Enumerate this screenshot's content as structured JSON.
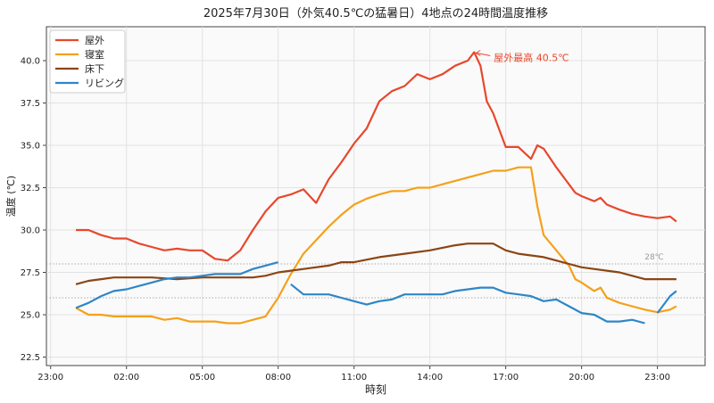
{
  "chart_data": {
    "type": "line",
    "title": "2025年7月30日（外気40.5℃の猛暑日）4地点の24時間温度推移",
    "xlabel": "時刻",
    "ylabel": "温度 (℃)",
    "xlim": [
      "2025-07-29 22:50",
      "2025-07-31 00:53"
    ],
    "ylim": [
      22,
      42
    ],
    "xticks": [
      {
        "t": "2025-07-29 23:00",
        "label": "23:00"
      },
      {
        "t": "2025-07-30 02:00",
        "label": "02:00"
      },
      {
        "t": "2025-07-30 05:00",
        "label": "05:00"
      },
      {
        "t": "2025-07-30 08:00",
        "label": "08:00"
      },
      {
        "t": "2025-07-30 11:00",
        "label": "11:00"
      },
      {
        "t": "2025-07-30 14:00",
        "label": "14:00"
      },
      {
        "t": "2025-07-30 17:00",
        "label": "17:00"
      },
      {
        "t": "2025-07-30 20:00",
        "label": "20:00"
      },
      {
        "t": "2025-07-30 23:00",
        "label": "23:00"
      }
    ],
    "yticks": [
      "22.5",
      "25.0",
      "27.5",
      "30.0",
      "32.5",
      "35.0",
      "37.5",
      "40.0"
    ],
    "grid": true,
    "legend_position": "top-left",
    "reference_lines": [
      {
        "y": 28,
        "label": "28℃",
        "style": "dotted"
      },
      {
        "y": 26,
        "label": "",
        "style": "dotted"
      }
    ],
    "annotation": {
      "text": "屋外最高 40.5℃",
      "t": "15:45",
      "y": 40.5,
      "color": "#e8472d"
    },
    "series": [
      {
        "name": "屋外",
        "color": "#e8472d",
        "segments": [
          [
            [
              "00:00",
              30.0
            ],
            [
              "00:30",
              30.0
            ],
            [
              "01:00",
              29.7
            ],
            [
              "01:30",
              29.5
            ],
            [
              "02:00",
              29.5
            ],
            [
              "02:30",
              29.2
            ],
            [
              "03:00",
              29.0
            ],
            [
              "03:30",
              28.8
            ],
            [
              "04:00",
              28.9
            ],
            [
              "04:30",
              28.8
            ],
            [
              "05:00",
              28.8
            ],
            [
              "05:30",
              28.3
            ],
            [
              "06:00",
              28.2
            ],
            [
              "06:30",
              28.8
            ],
            [
              "07:00",
              30.0
            ],
            [
              "07:30",
              31.1
            ],
            [
              "08:00",
              31.9
            ],
            [
              "08:30",
              32.1
            ],
            [
              "09:00",
              32.4
            ],
            [
              "09:30",
              31.6
            ],
            [
              "10:00",
              33.0
            ],
            [
              "10:30",
              34.0
            ],
            [
              "11:00",
              35.1
            ],
            [
              "11:30",
              36.0
            ],
            [
              "12:00",
              37.6
            ],
            [
              "12:30",
              38.2
            ],
            [
              "13:00",
              38.5
            ],
            [
              "13:30",
              39.2
            ],
            [
              "14:00",
              38.9
            ],
            [
              "14:30",
              39.2
            ],
            [
              "15:00",
              39.7
            ],
            [
              "15:30",
              40.0
            ],
            [
              "15:45",
              40.5
            ],
            [
              "16:00",
              39.7
            ],
            [
              "16:15",
              37.6
            ],
            [
              "16:30",
              36.9
            ],
            [
              "17:00",
              34.9
            ],
            [
              "17:30",
              34.9
            ],
            [
              "18:00",
              34.2
            ],
            [
              "18:15",
              35.0
            ],
            [
              "18:30",
              34.8
            ],
            [
              "19:00",
              33.7
            ],
            [
              "19:45",
              32.2
            ],
            [
              "20:00",
              32.0
            ],
            [
              "20:30",
              31.7
            ],
            [
              "20:45",
              31.9
            ],
            [
              "21:00",
              31.5
            ],
            [
              "21:30",
              31.2
            ],
            [
              "22:00",
              30.95
            ],
            [
              "22:30",
              30.8
            ],
            [
              "23:00",
              30.7
            ],
            [
              "23:30",
              30.8
            ],
            [
              "23:45",
              30.5
            ]
          ]
        ]
      },
      {
        "name": "寝室",
        "color": "#f5a01a",
        "segments": [
          [
            [
              "00:00",
              25.4
            ],
            [
              "00:30",
              25.0
            ],
            [
              "01:00",
              25.0
            ],
            [
              "01:30",
              24.9
            ],
            [
              "02:00",
              24.9
            ],
            [
              "02:30",
              24.9
            ],
            [
              "03:00",
              24.9
            ],
            [
              "03:30",
              24.7
            ],
            [
              "04:00",
              24.8
            ],
            [
              "04:30",
              24.6
            ],
            [
              "05:00",
              24.6
            ],
            [
              "05:30",
              24.6
            ],
            [
              "06:00",
              24.5
            ],
            [
              "06:30",
              24.5
            ],
            [
              "07:00",
              24.7
            ],
            [
              "07:30",
              24.9
            ],
            [
              "08:00",
              26.0
            ],
            [
              "08:30",
              27.4
            ],
            [
              "09:00",
              28.6
            ],
            [
              "09:30",
              29.4
            ],
            [
              "10:00",
              30.2
            ],
            [
              "10:30",
              30.9
            ],
            [
              "11:00",
              31.5
            ],
            [
              "11:30",
              31.85
            ],
            [
              "12:00",
              32.1
            ],
            [
              "12:30",
              32.3
            ],
            [
              "13:00",
              32.3
            ],
            [
              "13:30",
              32.5
            ],
            [
              "14:00",
              32.5
            ],
            [
              "14:30",
              32.7
            ],
            [
              "15:00",
              32.9
            ],
            [
              "15:30",
              33.1
            ],
            [
              "16:00",
              33.3
            ],
            [
              "16:30",
              33.5
            ],
            [
              "17:00",
              33.5
            ],
            [
              "17:30",
              33.7
            ],
            [
              "18:00",
              33.7
            ],
            [
              "18:15",
              31.4
            ],
            [
              "18:30",
              29.7
            ],
            [
              "19:00",
              28.8
            ],
            [
              "19:30",
              27.9
            ],
            [
              "19:45",
              27.1
            ],
            [
              "20:00",
              26.9
            ],
            [
              "20:30",
              26.4
            ],
            [
              "20:45",
              26.6
            ],
            [
              "21:00",
              26.0
            ],
            [
              "21:30",
              25.7
            ],
            [
              "22:00",
              25.5
            ],
            [
              "22:30",
              25.3
            ],
            [
              "23:00",
              25.15
            ],
            [
              "23:30",
              25.3
            ],
            [
              "23:45",
              25.5
            ]
          ]
        ]
      },
      {
        "name": "床下",
        "color": "#8b4513",
        "segments": [
          [
            [
              "00:00",
              26.8
            ],
            [
              "00:30",
              27.0
            ],
            [
              "01:00",
              27.1
            ],
            [
              "01:30",
              27.2
            ],
            [
              "02:00",
              27.2
            ],
            [
              "03:00",
              27.2
            ],
            [
              "04:00",
              27.1
            ],
            [
              "05:00",
              27.2
            ],
            [
              "06:00",
              27.2
            ],
            [
              "07:00",
              27.2
            ],
            [
              "07:30",
              27.3
            ],
            [
              "08:00",
              27.5
            ],
            [
              "08:30",
              27.6
            ],
            [
              "09:00",
              27.7
            ],
            [
              "10:00",
              27.9
            ],
            [
              "10:30",
              28.1
            ],
            [
              "11:00",
              28.1
            ],
            [
              "12:00",
              28.4
            ],
            [
              "13:00",
              28.6
            ],
            [
              "14:00",
              28.8
            ],
            [
              "15:00",
              29.1
            ],
            [
              "15:30",
              29.2
            ],
            [
              "16:00",
              29.2
            ],
            [
              "16:30",
              29.2
            ],
            [
              "17:00",
              28.8
            ],
            [
              "17:30",
              28.6
            ],
            [
              "18:00",
              28.5
            ],
            [
              "18:30",
              28.4
            ],
            [
              "19:00",
              28.2
            ],
            [
              "19:30",
              28.0
            ],
            [
              "20:00",
              27.8
            ],
            [
              "20:30",
              27.7
            ],
            [
              "21:00",
              27.6
            ],
            [
              "21:30",
              27.5
            ],
            [
              "22:00",
              27.3
            ],
            [
              "22:30",
              27.1
            ],
            [
              "23:00",
              27.1
            ],
            [
              "23:45",
              27.1
            ]
          ]
        ]
      },
      {
        "name": "リビング",
        "color": "#2e86c8",
        "segments": [
          [
            [
              "00:00",
              25.4
            ],
            [
              "00:30",
              25.7
            ],
            [
              "01:00",
              26.1
            ],
            [
              "01:30",
              26.4
            ],
            [
              "02:00",
              26.5
            ],
            [
              "02:30",
              26.7
            ],
            [
              "03:00",
              26.9
            ],
            [
              "03:30",
              27.1
            ],
            [
              "04:00",
              27.2
            ],
            [
              "04:30",
              27.2
            ],
            [
              "05:00",
              27.3
            ],
            [
              "05:30",
              27.4
            ],
            [
              "06:00",
              27.4
            ],
            [
              "06:30",
              27.4
            ],
            [
              "07:00",
              27.7
            ],
            [
              "07:30",
              27.9
            ],
            [
              "08:00",
              28.1
            ]
          ],
          [
            [
              "08:30",
              26.8
            ],
            [
              "09:00",
              26.2
            ],
            [
              "09:30",
              26.2
            ],
            [
              "10:00",
              26.2
            ],
            [
              "10:30",
              26.0
            ],
            [
              "11:00",
              25.8
            ],
            [
              "11:30",
              25.6
            ],
            [
              "12:00",
              25.8
            ],
            [
              "12:30",
              25.9
            ],
            [
              "13:00",
              26.2
            ],
            [
              "13:30",
              26.2
            ],
            [
              "14:00",
              26.2
            ],
            [
              "14:30",
              26.2
            ],
            [
              "15:00",
              26.4
            ],
            [
              "15:30",
              26.5
            ],
            [
              "16:00",
              26.6
            ],
            [
              "16:30",
              26.6
            ],
            [
              "17:00",
              26.3
            ],
            [
              "17:30",
              26.2
            ],
            [
              "18:00",
              26.1
            ],
            [
              "18:30",
              25.8
            ],
            [
              "19:00",
              25.9
            ],
            [
              "19:30",
              25.5
            ],
            [
              "20:00",
              25.1
            ],
            [
              "20:30",
              25.0
            ],
            [
              "21:00",
              24.6
            ],
            [
              "21:30",
              24.6
            ],
            [
              "22:00",
              24.7
            ],
            [
              "22:30",
              24.5
            ]
          ],
          [
            [
              "23:00",
              25.1
            ],
            [
              "23:30",
              26.1
            ],
            [
              "23:45",
              26.4
            ]
          ]
        ]
      }
    ]
  }
}
